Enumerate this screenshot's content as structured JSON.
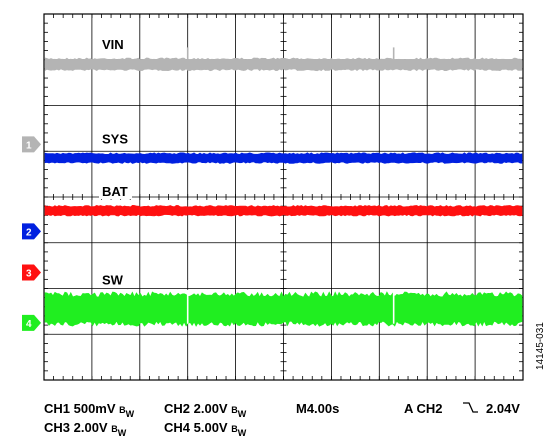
{
  "figure_id": "14145-031",
  "colors": {
    "ch1": "#b4b4b4",
    "ch2": "#0020e0",
    "ch3": "#ff1010",
    "ch4": "#20ee20",
    "grid": "#000000",
    "background": "#ffffff"
  },
  "chart_data": {
    "type": "line",
    "grid": {
      "divisions_x": 10,
      "divisions_y": 8,
      "minor_ticks_per_division": 5
    },
    "x": {
      "unit": "s",
      "per_division": 4.0,
      "range": [
        0,
        40
      ]
    },
    "y": {
      "unit": "div",
      "range": [
        0,
        8
      ]
    },
    "series": [
      {
        "name": "VIN",
        "channel": 1,
        "color": "#b4b4b4",
        "level_div": 6.9,
        "noise_div": 0.12,
        "spikes_x_div": [
          3.0,
          7.3
        ],
        "spike_height_div": 0.25
      },
      {
        "name": "SYS",
        "channel": 2,
        "color": "#0020e0",
        "level_div": 4.85,
        "noise_div": 0.1,
        "spikes_x_div": [],
        "spike_height_div": 0
      },
      {
        "name": "BAT",
        "channel": 3,
        "color": "#ff1010",
        "level_div": 3.7,
        "noise_div": 0.1,
        "spikes_x_div": [],
        "spike_height_div": 0
      },
      {
        "name": "SW",
        "channel": 4,
        "color": "#20ee20",
        "level_div": 1.55,
        "noise_div": 0.32,
        "spikes_x_div": [
          3.0,
          7.3
        ],
        "spike_height_div": 0.1
      }
    ],
    "ground_markers": [
      {
        "label": "1",
        "color": "#b4b4b4",
        "level_div": 5.15
      },
      {
        "label": "2",
        "color": "#0020e0",
        "level_div": 3.25
      },
      {
        "label": "3",
        "color": "#ff1010",
        "level_div": 2.35
      },
      {
        "label": "4",
        "color": "#20ee20",
        "level_div": 1.25
      }
    ]
  },
  "status": {
    "ch1": {
      "prefix": "CH1 500mV ",
      "bw": "B",
      "w": "W"
    },
    "ch2": {
      "prefix": "CH2 2.00V ",
      "bw": "B",
      "w": "W"
    },
    "ch3": {
      "prefix": "CH3 2.00V ",
      "bw": "B",
      "w": "W"
    },
    "ch4": {
      "prefix": "CH4 5.00V ",
      "bw": "B",
      "w": "W"
    },
    "timebase": "M4.00s",
    "trigger_prefix": "A  CH2",
    "trigger_slope_icon": "falling-edge-icon",
    "trigger_level": "2.04V"
  }
}
